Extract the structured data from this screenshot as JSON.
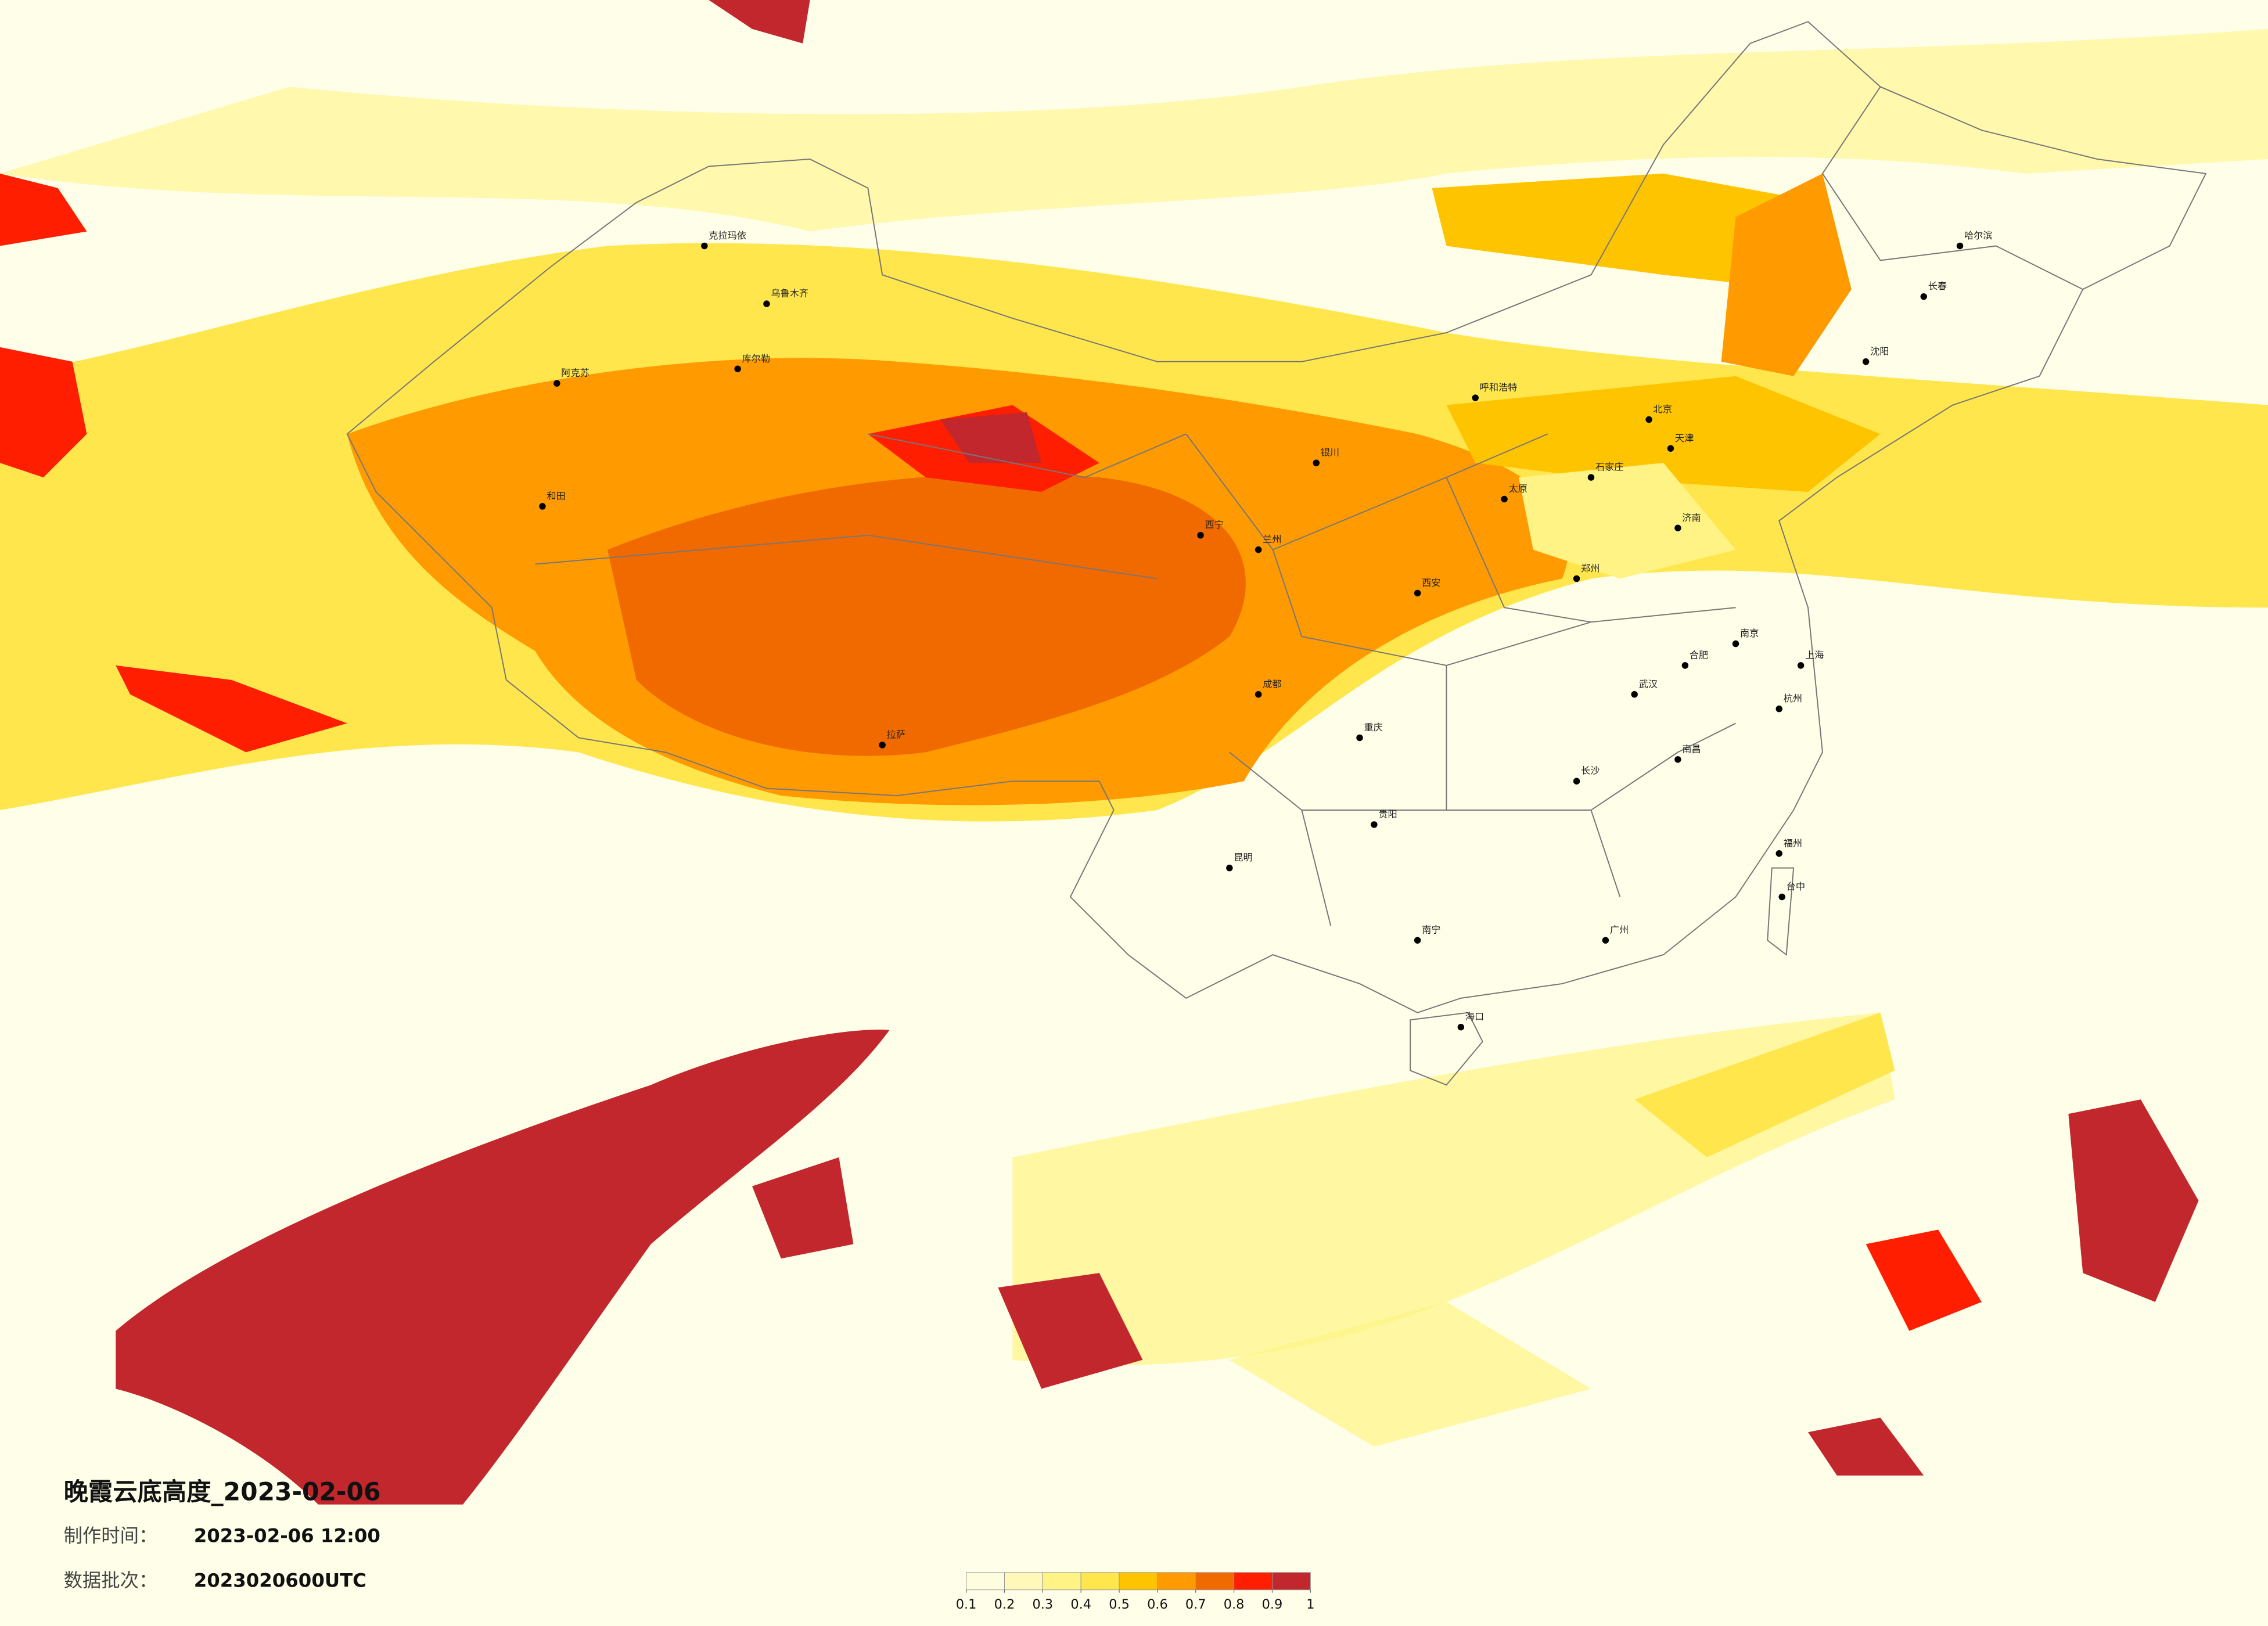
{
  "title": "晚霞云底高度_2023-02-06",
  "made_time_label": "制作时间：",
  "made_time": "2023-02-06 12:00",
  "batch_label": "数据批次：",
  "batch": "2023020600UTC",
  "legend": {
    "ticks": [
      0.1,
      0.2,
      0.3,
      0.4,
      0.5,
      0.6,
      0.7,
      0.8,
      0.9,
      1
    ],
    "colors": [
      "#fffde0",
      "#fff8b8",
      "#fff385",
      "#ffe64c",
      "#ffc400",
      "#ff9a00",
      "#f06a00",
      "#ff1e00",
      "#c1272d"
    ]
  },
  "cities": [
    "哈尔滨",
    "长春",
    "沈阳",
    "北京",
    "天津",
    "石家庄",
    "太原",
    "西安",
    "郑州",
    "武汉",
    "长沙",
    "南昌",
    "福州",
    "广州",
    "南宁",
    "昆明",
    "贵阳",
    "成都",
    "重庆",
    "兰州",
    "西宁",
    "拉萨",
    "乌鲁木齐",
    "呼和浩特",
    "银川",
    "济南",
    "南京",
    "上海",
    "杭州",
    "海口",
    "合肥",
    "台中",
    "克拉玛依",
    "阿克苏",
    "库尔勒",
    "和田"
  ]
}
